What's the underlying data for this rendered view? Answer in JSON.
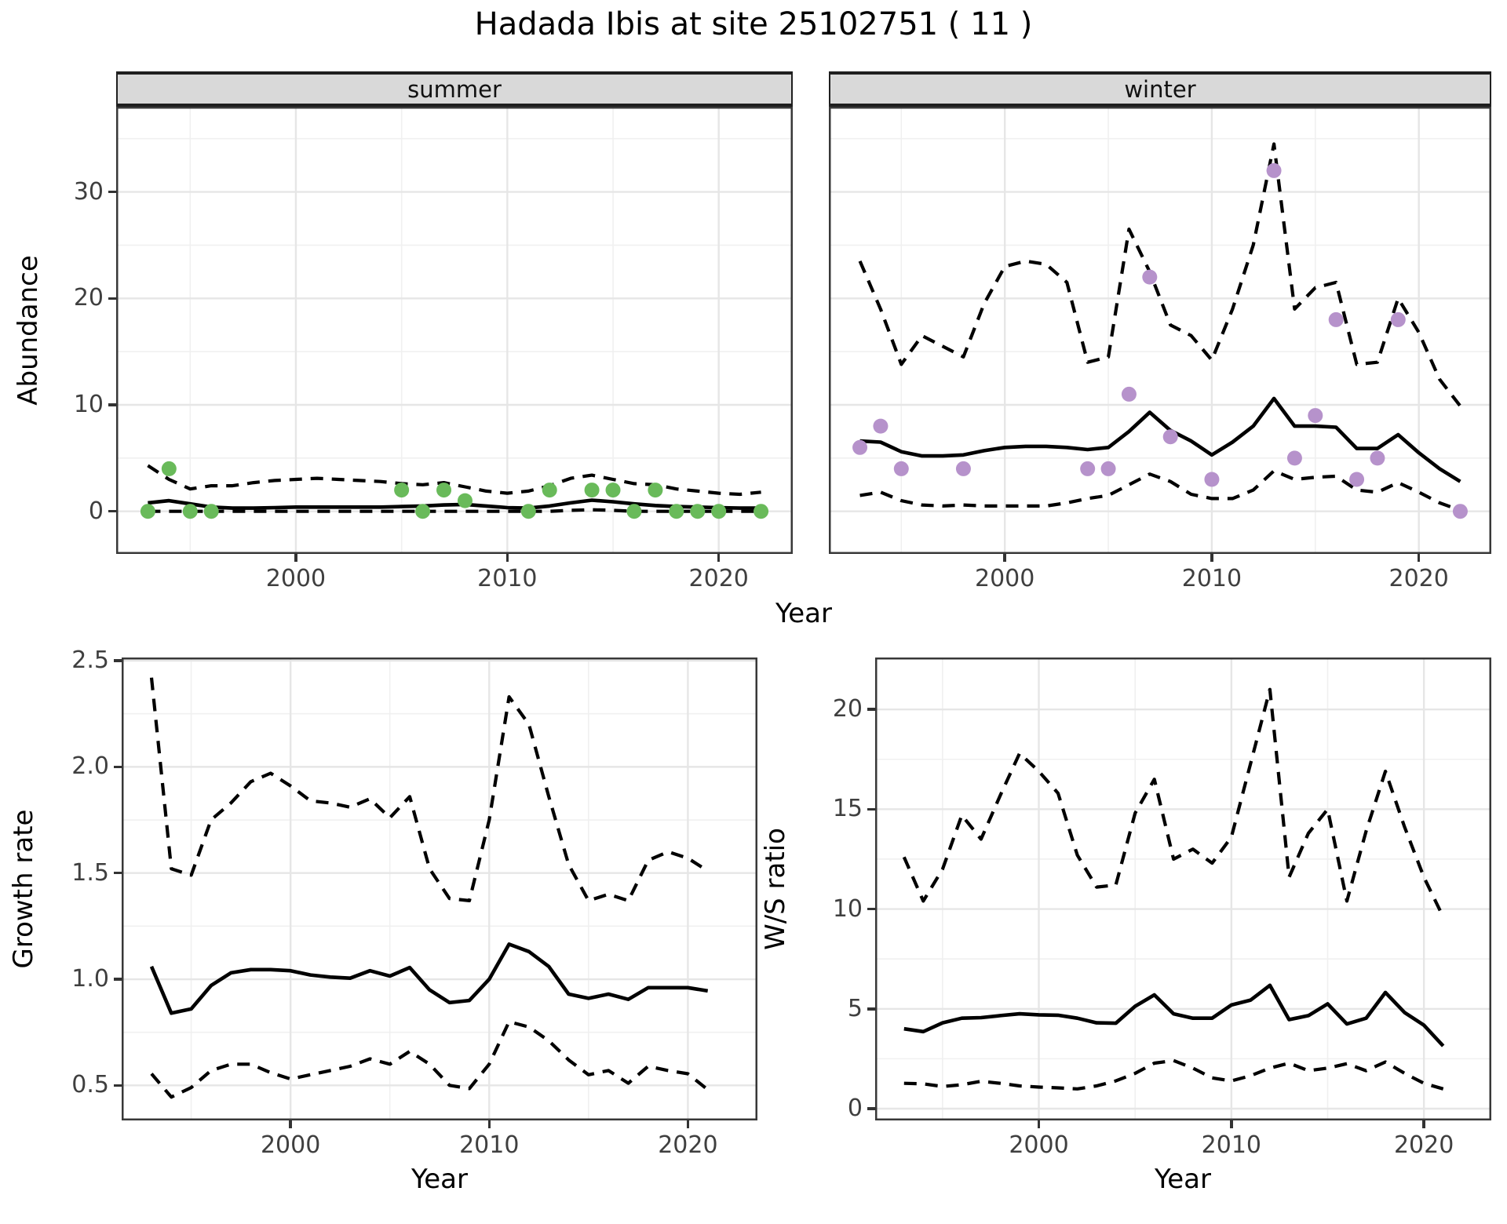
{
  "title": "Hadada Ibis at site 25102751 ( 11 )",
  "axes": {
    "abundance_label": "Abundance",
    "growth_label": "Growth rate",
    "ws_label": "W/S ratio",
    "year_label": "Year"
  },
  "colors": {
    "summer_point": "#69ba5a",
    "winter_point": "#b692cb",
    "fit_line": "#000000",
    "ci_line": "#000000",
    "strip_bg": "#d9d9d9",
    "grid_major": "#e6e6e6",
    "grid_minor": "#f0f0f0",
    "panel_border": "#383838",
    "tick_text": "#3f3f3f"
  },
  "chart_data": [
    {
      "id": "abundance_summer",
      "type": "line",
      "facet": "summer",
      "xlabel": "Year",
      "ylabel": "Abundance",
      "xlim": [
        1991.5,
        2023.5
      ],
      "ylim": [
        -4,
        38
      ],
      "xticks": [
        2000,
        2010,
        2020
      ],
      "xtick_labels": [
        "2000",
        "2010",
        "2020"
      ],
      "xminor": [
        1995,
        2005,
        2015
      ],
      "yticks": [
        0,
        10,
        20,
        30
      ],
      "ytick_labels": [
        "0",
        "10",
        "20",
        "30"
      ],
      "yminor": [
        5,
        15,
        25,
        35
      ],
      "show_ylabels": true,
      "years": [
        1993,
        1994,
        1995,
        1996,
        1997,
        1998,
        1999,
        2000,
        2001,
        2002,
        2003,
        2004,
        2005,
        2006,
        2007,
        2008,
        2009,
        2010,
        2011,
        2012,
        2013,
        2014,
        2015,
        2016,
        2017,
        2018,
        2019,
        2020,
        2021,
        2022
      ],
      "series": [
        {
          "name": "fit median",
          "style": "solid",
          "values": [
            0.8,
            1.0,
            0.7,
            0.4,
            0.3,
            0.3,
            0.35,
            0.4,
            0.4,
            0.4,
            0.4,
            0.4,
            0.45,
            0.5,
            0.6,
            0.65,
            0.5,
            0.35,
            0.3,
            0.5,
            0.8,
            1.05,
            0.9,
            0.7,
            0.55,
            0.45,
            0.4,
            0.35,
            0.3,
            0.3
          ]
        },
        {
          "name": "upper CI",
          "style": "dashed",
          "values": [
            4.3,
            3.0,
            2.1,
            2.4,
            2.4,
            2.7,
            2.9,
            3.0,
            3.1,
            3.0,
            2.9,
            2.8,
            2.6,
            2.5,
            2.7,
            2.3,
            1.9,
            1.7,
            1.9,
            2.4,
            3.1,
            3.4,
            3.0,
            2.6,
            2.5,
            2.1,
            1.9,
            1.7,
            1.6,
            1.8
          ]
        },
        {
          "name": "lower CI",
          "style": "dashed",
          "values": [
            0,
            0,
            0,
            0,
            0,
            0,
            0,
            0,
            0,
            0,
            0,
            0,
            0,
            0,
            0,
            0,
            0,
            0,
            0,
            0,
            0.1,
            0.15,
            0.1,
            0,
            0,
            0,
            0,
            0,
            0,
            0
          ]
        }
      ],
      "points": {
        "name": "observed summer counts",
        "color_key": "summer_point",
        "data": [
          [
            1993,
            0
          ],
          [
            1994,
            4
          ],
          [
            1995,
            0
          ],
          [
            1996,
            0
          ],
          [
            2005,
            2
          ],
          [
            2006,
            0
          ],
          [
            2007,
            2
          ],
          [
            2008,
            1
          ],
          [
            2011,
            0
          ],
          [
            2012,
            2
          ],
          [
            2014,
            2
          ],
          [
            2015,
            2
          ],
          [
            2016,
            0
          ],
          [
            2017,
            2
          ],
          [
            2018,
            0
          ],
          [
            2019,
            0
          ],
          [
            2020,
            0
          ],
          [
            2022,
            0
          ]
        ]
      }
    },
    {
      "id": "abundance_winter",
      "type": "line",
      "facet": "winter",
      "xlabel": "Year",
      "ylabel": "Abundance",
      "xlim": [
        1991.5,
        2023.5
      ],
      "ylim": [
        -4,
        38
      ],
      "xticks": [
        2000,
        2010,
        2020
      ],
      "xtick_labels": [
        "2000",
        "2010",
        "2020"
      ],
      "xminor": [
        1995,
        2005,
        2015
      ],
      "yticks": [
        0,
        10,
        20,
        30
      ],
      "ytick_labels": [
        "0",
        "10",
        "20",
        "30"
      ],
      "yminor": [
        5,
        15,
        25,
        35
      ],
      "show_ylabels": false,
      "years": [
        1993,
        1994,
        1995,
        1996,
        1997,
        1998,
        1999,
        2000,
        2001,
        2002,
        2003,
        2004,
        2005,
        2006,
        2007,
        2008,
        2009,
        2010,
        2011,
        2012,
        2013,
        2014,
        2015,
        2016,
        2017,
        2018,
        2019,
        2020,
        2021,
        2022
      ],
      "series": [
        {
          "name": "fit median",
          "style": "solid",
          "values": [
            6.6,
            6.5,
            5.6,
            5.2,
            5.2,
            5.3,
            5.7,
            6.0,
            6.1,
            6.1,
            6.0,
            5.8,
            6.0,
            7.5,
            9.3,
            7.6,
            6.6,
            5.3,
            6.5,
            8.0,
            10.6,
            8.0,
            8.0,
            7.9,
            5.9,
            5.9,
            7.2,
            5.5,
            4.0,
            2.8
          ]
        },
        {
          "name": "upper CI",
          "style": "dashed",
          "values": [
            23.5,
            19.0,
            13.8,
            16.5,
            15.5,
            14.5,
            19.5,
            23.0,
            23.5,
            23.2,
            21.5,
            14.0,
            14.5,
            26.5,
            22.5,
            17.5,
            16.5,
            14.2,
            19.0,
            25.0,
            34.5,
            19.0,
            21.0,
            21.5,
            13.8,
            14.0,
            20.0,
            16.8,
            12.4,
            9.9
          ]
        },
        {
          "name": "lower CI",
          "style": "dashed",
          "values": [
            1.5,
            1.8,
            1.0,
            0.6,
            0.5,
            0.6,
            0.5,
            0.5,
            0.5,
            0.5,
            0.8,
            1.2,
            1.5,
            2.5,
            3.5,
            2.8,
            1.6,
            1.2,
            1.2,
            2.0,
            3.8,
            3.0,
            3.2,
            3.3,
            2.0,
            1.8,
            2.7,
            1.8,
            0.8,
            0.1
          ]
        }
      ],
      "points": {
        "name": "observed winter counts",
        "color_key": "winter_point",
        "data": [
          [
            1993,
            6
          ],
          [
            1994,
            8
          ],
          [
            1995,
            4
          ],
          [
            1998,
            4
          ],
          [
            2004,
            4
          ],
          [
            2005,
            4
          ],
          [
            2006,
            11
          ],
          [
            2007,
            22
          ],
          [
            2008,
            7
          ],
          [
            2010,
            3
          ],
          [
            2013,
            32
          ],
          [
            2014,
            5
          ],
          [
            2015,
            9
          ],
          [
            2016,
            18
          ],
          [
            2017,
            3
          ],
          [
            2018,
            5
          ],
          [
            2019,
            18
          ],
          [
            2022,
            0
          ]
        ]
      }
    },
    {
      "id": "growth",
      "type": "line",
      "facet": null,
      "xlabel": "Year",
      "ylabel": "Growth rate",
      "xlim": [
        1991.5,
        2023.5
      ],
      "ylim": [
        0.335,
        2.515
      ],
      "xticks": [
        2000,
        2010,
        2020
      ],
      "xtick_labels": [
        "2000",
        "2010",
        "2020"
      ],
      "xminor": [
        1995,
        2005,
        2015
      ],
      "yticks": [
        0.5,
        1.0,
        1.5,
        2.0,
        2.5
      ],
      "ytick_labels": [
        "0.5",
        "1.0",
        "1.5",
        "2.0",
        "2.5"
      ],
      "yminor": [
        0.75,
        1.25,
        1.75,
        2.25
      ],
      "show_ylabels": true,
      "years": [
        1993,
        1994,
        1995,
        1996,
        1997,
        1998,
        1999,
        2000,
        2001,
        2002,
        2003,
        2004,
        2005,
        2006,
        2007,
        2008,
        2009,
        2010,
        2011,
        2012,
        2013,
        2014,
        2015,
        2016,
        2017,
        2018,
        2019,
        2020,
        2021
      ],
      "series": [
        {
          "name": "fit median",
          "style": "solid",
          "values": [
            1.06,
            0.84,
            0.86,
            0.97,
            1.03,
            1.045,
            1.045,
            1.04,
            1.02,
            1.01,
            1.005,
            1.04,
            1.015,
            1.055,
            0.95,
            0.89,
            0.9,
            1.0,
            1.165,
            1.13,
            1.06,
            0.93,
            0.91,
            0.93,
            0.905,
            0.96,
            0.96,
            0.96,
            0.945
          ]
        },
        {
          "name": "upper CI",
          "style": "dashed",
          "values": [
            2.42,
            1.52,
            1.49,
            1.75,
            1.83,
            1.93,
            1.97,
            1.91,
            1.84,
            1.83,
            1.81,
            1.85,
            1.76,
            1.86,
            1.52,
            1.38,
            1.37,
            1.75,
            2.33,
            2.2,
            1.86,
            1.54,
            1.37,
            1.4,
            1.37,
            1.56,
            1.6,
            1.57,
            1.51
          ]
        },
        {
          "name": "lower CI",
          "style": "dashed",
          "values": [
            0.555,
            0.445,
            0.49,
            0.57,
            0.6,
            0.6,
            0.56,
            0.53,
            0.55,
            0.57,
            0.59,
            0.625,
            0.6,
            0.66,
            0.6,
            0.5,
            0.485,
            0.6,
            0.8,
            0.775,
            0.71,
            0.62,
            0.55,
            0.57,
            0.51,
            0.59,
            0.57,
            0.555,
            0.48
          ]
        }
      ],
      "points": null
    },
    {
      "id": "ws",
      "type": "line",
      "facet": null,
      "xlabel": "Year",
      "ylabel": "W/S ratio",
      "xlim": [
        1991.5,
        2023.5
      ],
      "ylim": [
        -0.59,
        22.6
      ],
      "xticks": [
        2000,
        2010,
        2020
      ],
      "xtick_labels": [
        "2000",
        "2010",
        "2020"
      ],
      "xminor": [
        1995,
        2005,
        2015
      ],
      "yticks": [
        0,
        5,
        10,
        15,
        20
      ],
      "ytick_labels": [
        "0",
        "5",
        "10",
        "15",
        "20"
      ],
      "yminor": [
        2.5,
        7.5,
        12.5,
        17.5
      ],
      "show_ylabels": true,
      "years": [
        1993,
        1994,
        1995,
        1996,
        1997,
        1998,
        1999,
        2000,
        2001,
        2002,
        2003,
        2004,
        2005,
        2006,
        2007,
        2008,
        2009,
        2010,
        2011,
        2012,
        2013,
        2014,
        2015,
        2016,
        2017,
        2018,
        2019,
        2020,
        2021
      ],
      "series": [
        {
          "name": "fit median",
          "style": "solid",
          "values": [
            4.0,
            3.86,
            4.3,
            4.53,
            4.56,
            4.66,
            4.75,
            4.7,
            4.68,
            4.53,
            4.3,
            4.28,
            5.13,
            5.7,
            4.75,
            4.53,
            4.53,
            5.19,
            5.44,
            6.18,
            4.46,
            4.66,
            5.25,
            4.24,
            4.53,
            5.82,
            4.81,
            4.18,
            3.14
          ]
        },
        {
          "name": "upper CI",
          "style": "dashed",
          "values": [
            12.6,
            10.4,
            12.0,
            14.7,
            13.5,
            15.7,
            17.8,
            16.9,
            15.8,
            12.7,
            11.1,
            11.2,
            14.8,
            16.5,
            12.5,
            13.0,
            12.3,
            13.6,
            17.3,
            21.0,
            11.6,
            13.8,
            15.0,
            10.4,
            13.9,
            16.9,
            14.1,
            11.6,
            9.6
          ]
        },
        {
          "name": "lower CI",
          "style": "dashed",
          "values": [
            1.27,
            1.24,
            1.11,
            1.2,
            1.37,
            1.27,
            1.14,
            1.08,
            1.04,
            0.99,
            1.14,
            1.39,
            1.77,
            2.28,
            2.41,
            2.03,
            1.54,
            1.39,
            1.65,
            2.03,
            2.28,
            1.9,
            2.03,
            2.25,
            1.9,
            2.34,
            1.77,
            1.27,
            0.99
          ]
        }
      ],
      "points": null
    }
  ]
}
